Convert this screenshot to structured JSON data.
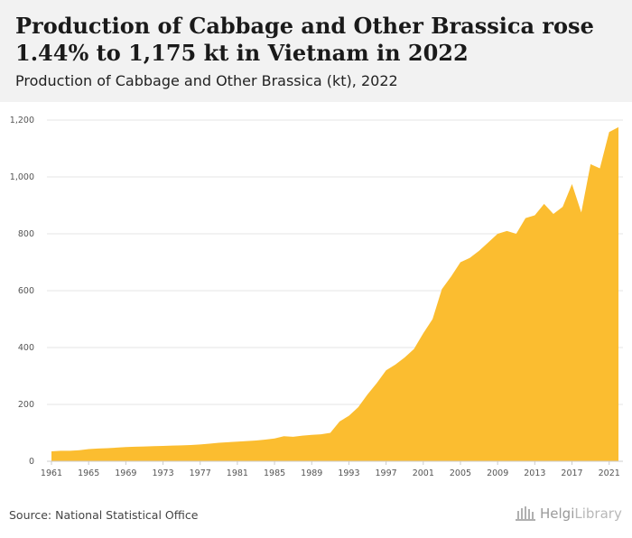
{
  "header": {
    "title": "Production of Cabbage and Other Brassica rose 1.44% to 1,175 kt in Vietnam in 2022",
    "subtitle": "Production of Cabbage and Other Brassica (kt), 2022"
  },
  "footer": {
    "source": "Source: National Statistical Office",
    "logo_main": "Helgi",
    "logo_suffix": "Library"
  },
  "colors": {
    "area_fill": "#fbbd30",
    "grid": "#e6e6e6",
    "header_bg": "#f2f2f2"
  },
  "chart_data": {
    "type": "area",
    "title": "Production of Cabbage and Other Brassica (kt), 2022",
    "xlabel": "",
    "ylabel": "",
    "ylim": [
      0,
      1200
    ],
    "y_ticks": [
      "0",
      "200",
      "400",
      "600",
      "800",
      "1,000",
      "1,200"
    ],
    "x_ticks": [
      "1961",
      "1965",
      "1969",
      "1973",
      "1977",
      "1981",
      "1985",
      "1989",
      "1993",
      "1997",
      "2001",
      "2005",
      "2009",
      "2013",
      "2017",
      "2021"
    ],
    "grid": true,
    "series": [
      {
        "x": [
          1961,
          1962,
          1963,
          1964,
          1965,
          1966,
          1967,
          1968,
          1969,
          1970,
          1971,
          1972,
          1973,
          1974,
          1975,
          1976,
          1977,
          1978,
          1979,
          1980,
          1981,
          1982,
          1983,
          1984,
          1985,
          1986,
          1987,
          1988,
          1989,
          1990,
          1991,
          1992,
          1993,
          1994,
          1995,
          1996,
          1997,
          1998,
          1999,
          2000,
          2001,
          2002,
          2003,
          2004,
          2005,
          2006,
          2007,
          2008,
          2009,
          2010,
          2011,
          2012,
          2013,
          2014,
          2015,
          2016,
          2017,
          2018,
          2019,
          2020,
          2021,
          2022
        ],
        "values": [
          35,
          37,
          37,
          39,
          43,
          45,
          46,
          48,
          50,
          51,
          52,
          53,
          54,
          55,
          56,
          57,
          59,
          62,
          65,
          67,
          69,
          71,
          73,
          76,
          80,
          88,
          86,
          90,
          93,
          95,
          100,
          140,
          160,
          190,
          235,
          275,
          320,
          340,
          365,
          395,
          450,
          500,
          605,
          650,
          700,
          715,
          740,
          770,
          800,
          810,
          800,
          855,
          865,
          905,
          870,
          895,
          975,
          875,
          1045,
          1030,
          1158,
          1175
        ]
      }
    ]
  }
}
